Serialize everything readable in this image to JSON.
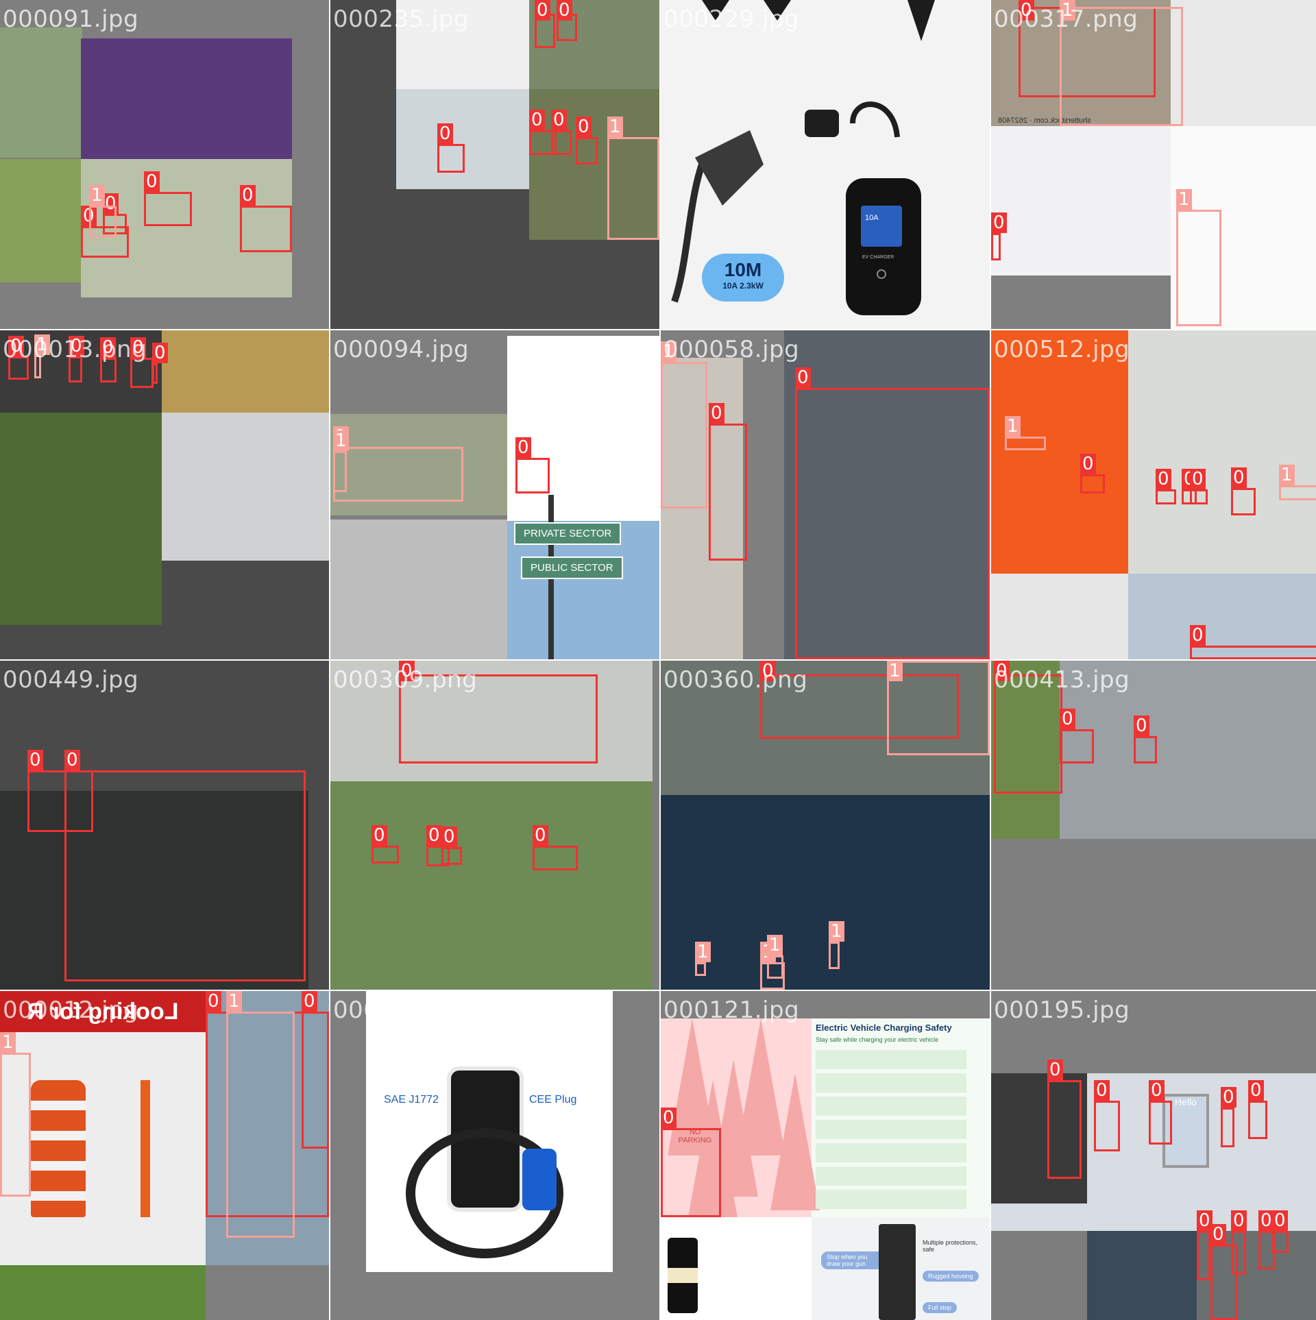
{
  "mosaic": {
    "colors": {
      "class_0": "#ee3333",
      "class_1": "#f7a19a",
      "letterbox": "#7f7f7f",
      "dark_pad": "#4a4a4a"
    },
    "tiles": [
      {
        "filename": "000091.jpg",
        "photos": [
          {
            "desc": "street",
            "color": "#8aa07a"
          },
          {
            "desc": "fireworks",
            "color": "#5a3a7a"
          },
          {
            "desc": "charging lot",
            "color": "#b9c2a8"
          },
          {
            "desc": "field cones",
            "color": "#86a05a"
          }
        ],
        "detections": [
          {
            "cls": "0"
          },
          {
            "cls": "0"
          },
          {
            "cls": "1"
          },
          {
            "cls": "0"
          },
          {
            "cls": "0"
          }
        ]
      },
      {
        "filename": "000235.jpg",
        "photos": [
          {
            "desc": "cone",
            "color": "#f0f0f0"
          },
          {
            "desc": "cone grass",
            "color": "#7a8a6a"
          },
          {
            "desc": "gas station chargers",
            "color": "#cfd6da"
          },
          {
            "desc": "pole",
            "color": "#6f7a55"
          }
        ],
        "detections": [
          {
            "cls": "0"
          },
          {
            "cls": "0"
          },
          {
            "cls": "0"
          },
          {
            "cls": "0"
          },
          {
            "cls": "0"
          },
          {
            "cls": "0"
          },
          {
            "cls": "1"
          }
        ]
      },
      {
        "filename": "000229.jpg",
        "photos": [
          {
            "desc": "ev charger product",
            "color": "#f3f3f3"
          }
        ],
        "callout": {
          "title": "10M",
          "subtitle": "10A 2.3kW",
          "screen": "10A",
          "unit": "EV CHARGER"
        },
        "detections": []
      },
      {
        "filename": "000317.png",
        "photos": [
          {
            "desc": "pavement",
            "color": "#a59a8a"
          },
          {
            "desc": "plug",
            "color": "#e8e8e8"
          },
          {
            "desc": "car charging",
            "color": "#f1f1f3"
          },
          {
            "desc": "type2 plug",
            "color": "#fafafa"
          }
        ],
        "watermark": "shutterstock.com · 2627408",
        "detections": [
          {
            "cls": "0"
          },
          {
            "cls": "1"
          },
          {
            "cls": "0"
          },
          {
            "cls": "1"
          }
        ]
      },
      {
        "filename": "000013.png",
        "photos": [
          {
            "desc": "lot",
            "color": "#3b3b3b"
          },
          {
            "desc": "dump truck",
            "color": "#b89a55"
          },
          {
            "desc": "charger grass",
            "color": "#4f6a35"
          },
          {
            "desc": "fence panel",
            "color": "#cfd1d3"
          }
        ],
        "detections": [
          {
            "cls": "0"
          },
          {
            "cls": "1"
          },
          {
            "cls": "0"
          },
          {
            "cls": "0"
          },
          {
            "cls": "0"
          },
          {
            "cls": "0"
          },
          {
            "cls": "0"
          }
        ]
      },
      {
        "filename": "000094.jpg",
        "photos": [
          {
            "desc": "leaf charging",
            "color": "#9aa28a"
          },
          {
            "desc": "cones tape",
            "color": "#ffffff"
          },
          {
            "desc": "charging bays",
            "color": "#bdbdbd"
          },
          {
            "desc": "sky signpost",
            "color": "#8fb6d8"
          }
        ],
        "signs": {
          "top": "PRIVATE SECTOR",
          "bottom": "PUBLIC SECTOR"
        },
        "detections": [
          {
            "cls": "1"
          },
          {
            "cls": "1"
          },
          {
            "cls": "0"
          }
        ]
      },
      {
        "filename": "000058.jpg",
        "photos": [
          {
            "desc": "man charging",
            "color": "#c9c5bd"
          },
          {
            "desc": "car closeup",
            "color": "#5a6168"
          }
        ],
        "detections": [
          {
            "cls": "1"
          },
          {
            "cls": "0"
          },
          {
            "cls": "0"
          }
        ]
      },
      {
        "filename": "000512.jpg",
        "photos": [
          {
            "desc": "orange sign",
            "color": "#f25a1e"
          },
          {
            "desc": "canopy station",
            "color": "#d9dcd6"
          },
          {
            "desc": "car charging white",
            "color": "#e6e6e6"
          },
          {
            "desc": "lot lamp",
            "color": "#b8c6d4"
          }
        ],
        "detections": [
          {
            "cls": "1"
          },
          {
            "cls": "0"
          },
          {
            "cls": "0"
          },
          {
            "cls": "0"
          },
          {
            "cls": "0"
          },
          {
            "cls": "0"
          },
          {
            "cls": "1"
          },
          {
            "cls": "0"
          }
        ]
      },
      {
        "filename": "000449.jpg",
        "photos": [
          {
            "desc": "dark fence",
            "color": "#2f3230"
          }
        ],
        "detections": [
          {
            "cls": "0"
          },
          {
            "cls": "0"
          }
        ]
      },
      {
        "filename": "000309.png",
        "photos": [
          {
            "desc": "black pickup",
            "color": "#c7c9c4"
          },
          {
            "desc": "fast chargers",
            "color": "#6e8a55"
          }
        ],
        "detections": [
          {
            "cls": "0"
          },
          {
            "cls": "0"
          },
          {
            "cls": "0"
          },
          {
            "cls": "0"
          },
          {
            "cls": "0"
          }
        ]
      },
      {
        "filename": "000360.png",
        "photos": [
          {
            "desc": "parking stop",
            "color": "#6b746d"
          },
          {
            "desc": "futuristic charging",
            "color": "#1f3448"
          }
        ],
        "detections": [
          {
            "cls": "0"
          },
          {
            "cls": "1"
          },
          {
            "cls": "1"
          },
          {
            "cls": "1"
          },
          {
            "cls": "1"
          },
          {
            "cls": "1"
          }
        ]
      },
      {
        "filename": "000413.jpg",
        "photos": [
          {
            "desc": "car fence",
            "color": "#6e8a4a"
          },
          {
            "desc": "empty lot fence",
            "color": "#9aa0a4"
          }
        ],
        "detections": [
          {
            "cls": "0"
          },
          {
            "cls": "0"
          },
          {
            "cls": "0"
          }
        ]
      },
      {
        "filename": "000012.jpg",
        "photos": [
          {
            "desc": "barrel bollard",
            "color": "#ededed"
          },
          {
            "desc": "woman car",
            "color": "#8aa0b0"
          },
          {
            "desc": "trees",
            "color": "#5f8a3a"
          }
        ],
        "banner": "Looking for R",
        "detections": [
          {
            "cls": "1"
          },
          {
            "cls": "0"
          },
          {
            "cls": "1"
          },
          {
            "cls": "0"
          }
        ]
      },
      {
        "filename": "000498.jpg",
        "photos": [
          {
            "desc": "charger kit",
            "color": "#ffffff"
          }
        ],
        "kit": {
          "left": "SAE J1772",
          "right": "CEE Plug"
        },
        "detections": []
      },
      {
        "filename": "000121.jpg",
        "photos": [
          {
            "desc": "no parking cones",
            "color": "#ffd9d9"
          },
          {
            "desc": "safety infographic",
            "color": "#f4faf4"
          },
          {
            "desc": "bollard",
            "color": "#ffffff"
          },
          {
            "desc": "pedestal charger",
            "color": "#f1f2f4"
          }
        ],
        "cone_text": "NO PARKING",
        "infographic": {
          "title": "Electric Vehicle Charging Safety",
          "subtitle": "Stay safe while charging your electric vehicle"
        },
        "bubbles": [
          "Stop when you draw your gun",
          "Rugged housing",
          "Full stop"
        ],
        "caption": "Multiple protections, safe",
        "detections": [
          {
            "cls": "0"
          }
        ]
      },
      {
        "filename": "000195.jpg",
        "photos": [
          {
            "desc": "storefront kiosk",
            "color": "#d7dde2"
          },
          {
            "desc": "parking cars",
            "color": "#7d7d7d"
          },
          {
            "desc": "charger cable",
            "color": "#3a4a5a"
          },
          {
            "desc": "red cars",
            "color": "#6a7070"
          }
        ],
        "kiosk_text": "Hello",
        "detections": [
          {
            "cls": "0"
          },
          {
            "cls": "0"
          },
          {
            "cls": "0"
          },
          {
            "cls": "0"
          },
          {
            "cls": "0"
          },
          {
            "cls": "0"
          },
          {
            "cls": "0"
          },
          {
            "cls": "0"
          },
          {
            "cls": "0"
          },
          {
            "cls": "0"
          }
        ]
      }
    ]
  }
}
